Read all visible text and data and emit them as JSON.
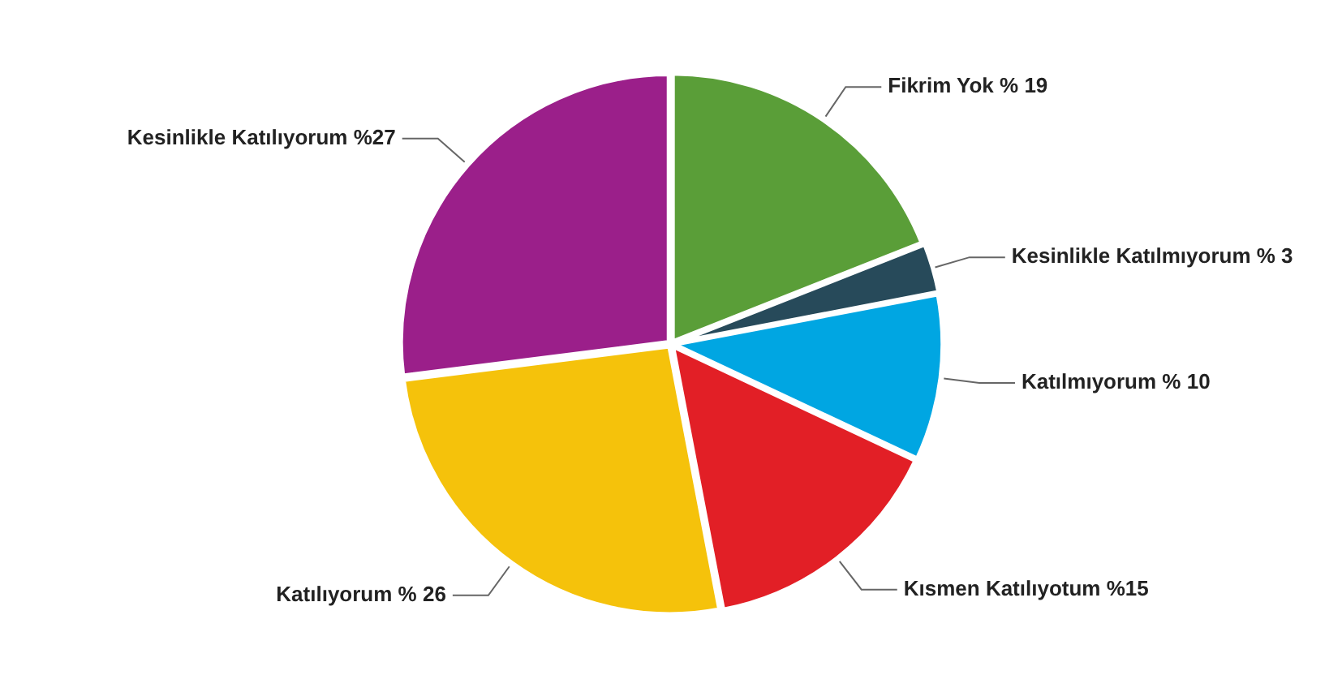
{
  "chart_data": {
    "type": "pie",
    "categories": [
      "Fikrim Yok",
      "Kesinlikle Katılmıyorum",
      "Katılmıyorum",
      "Kısmen Katılıyotum",
      "Katılıyorum",
      "Kesinlikle Katılıyorum"
    ],
    "values": [
      19,
      3,
      10,
      15,
      26,
      27
    ],
    "value_labels": [
      "% 19",
      "% 3",
      "% 10",
      "%15",
      "% 26",
      "%27"
    ],
    "colors": [
      "#5a9e38",
      "#274a5a",
      "#00a6e2",
      "#e21f26",
      "#f5c20b",
      "#9b1f8a"
    ],
    "legend": false
  }
}
